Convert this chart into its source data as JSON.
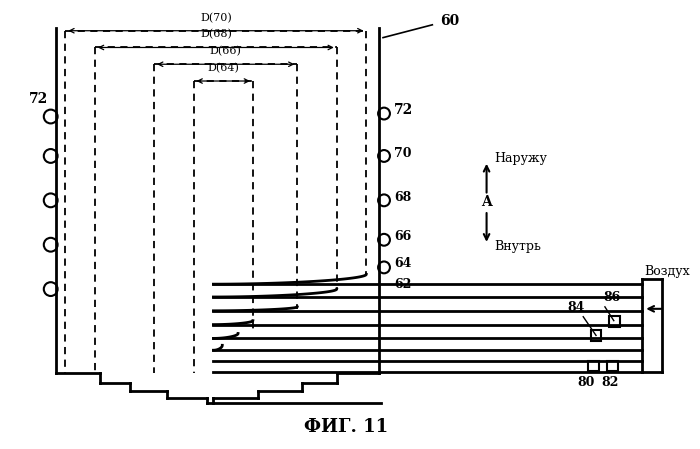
{
  "title": "ФИГ. 11",
  "bg": "#ffffff",
  "fg": "#000000",
  "D70": "D(70)",
  "D68": "D(68)",
  "D66": "D(66)",
  "D64": "D(64)",
  "lbl_60": "60",
  "lbl_62": "62",
  "lbl_64": "64",
  "lbl_66": "66",
  "lbl_68": "68",
  "lbl_70": "70",
  "lbl_72": "72",
  "lbl_80": "80",
  "lbl_82": "82",
  "lbl_84": "84",
  "lbl_86": "86",
  "lbl_A": "A",
  "lbl_naruzhu": "Наружу",
  "lbl_vnutr": "Внутрь",
  "lbl_vozduh": "Воздух"
}
